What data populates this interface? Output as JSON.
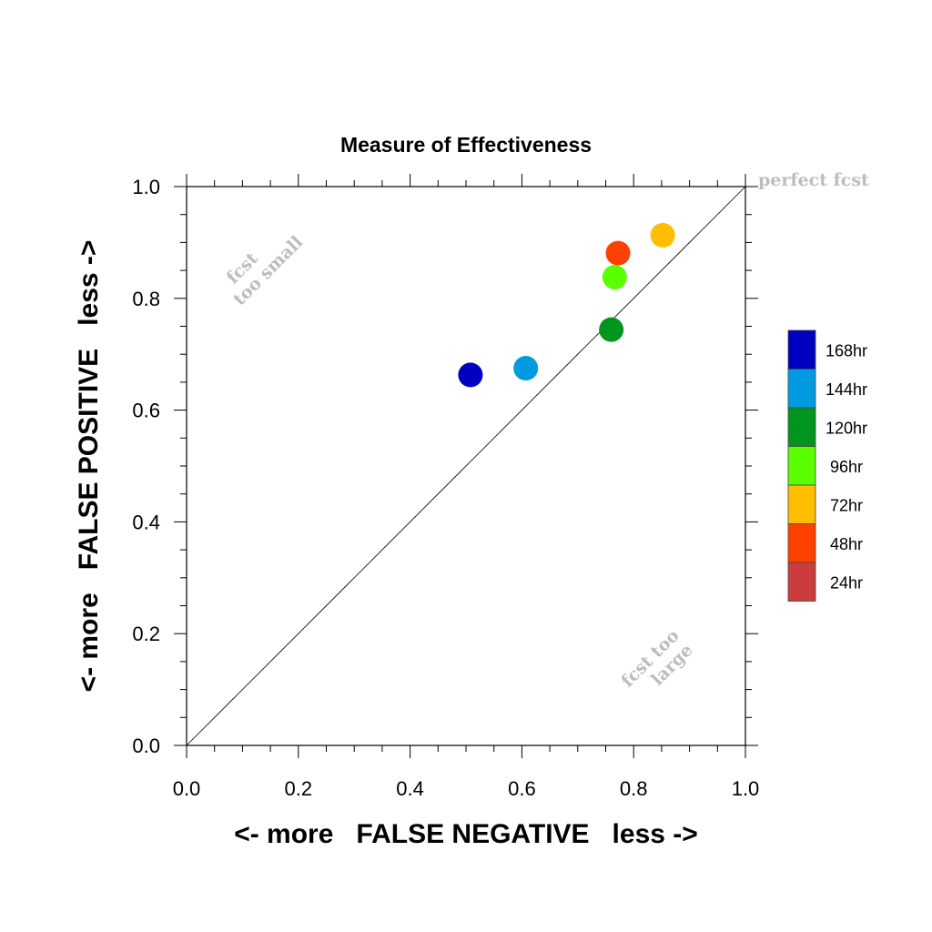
{
  "chart_data": {
    "type": "scatter",
    "title": "Measure of Effectiveness",
    "xlabel": "<- more   FALSE NEGATIVE   less ->",
    "ylabel": "<- more   FALSE POSITIVE   less ->",
    "xlim": [
      0.0,
      1.0
    ],
    "ylim": [
      0.0,
      1.0
    ],
    "xticks": [
      "0.0",
      "0.2",
      "0.4",
      "0.6",
      "0.8",
      "1.0"
    ],
    "yticks": [
      "0.0",
      "0.2",
      "0.4",
      "0.6",
      "0.8",
      "1.0"
    ],
    "grid": false,
    "reference_line": "diagonal",
    "annotations": {
      "perfect": "perfect fcst",
      "too_small_1": "fcst",
      "too_small_2": "too small",
      "too_large_1": "fcst too",
      "too_large_2": "large"
    },
    "series": [
      {
        "name": "168hr",
        "color": "#0000c0",
        "x": 0.508,
        "y": 0.663
      },
      {
        "name": "144hr",
        "color": "#009ae0",
        "x": 0.607,
        "y": 0.675
      },
      {
        "name": "120hr",
        "color": "#00961e",
        "x": 0.76,
        "y": 0.744
      },
      {
        "name": "96hr",
        "color": "#5aff00",
        "x": 0.766,
        "y": 0.838
      },
      {
        "name": "72hr",
        "color": "#ffbe00",
        "x": 0.852,
        "y": 0.913
      },
      {
        "name": "48hr",
        "color": "#ff4100",
        "x": 0.772,
        "y": 0.881
      },
      {
        "name": "24hr",
        "color": "#cd3c3c",
        "x": null,
        "y": null
      }
    ],
    "legend_position": "right"
  }
}
